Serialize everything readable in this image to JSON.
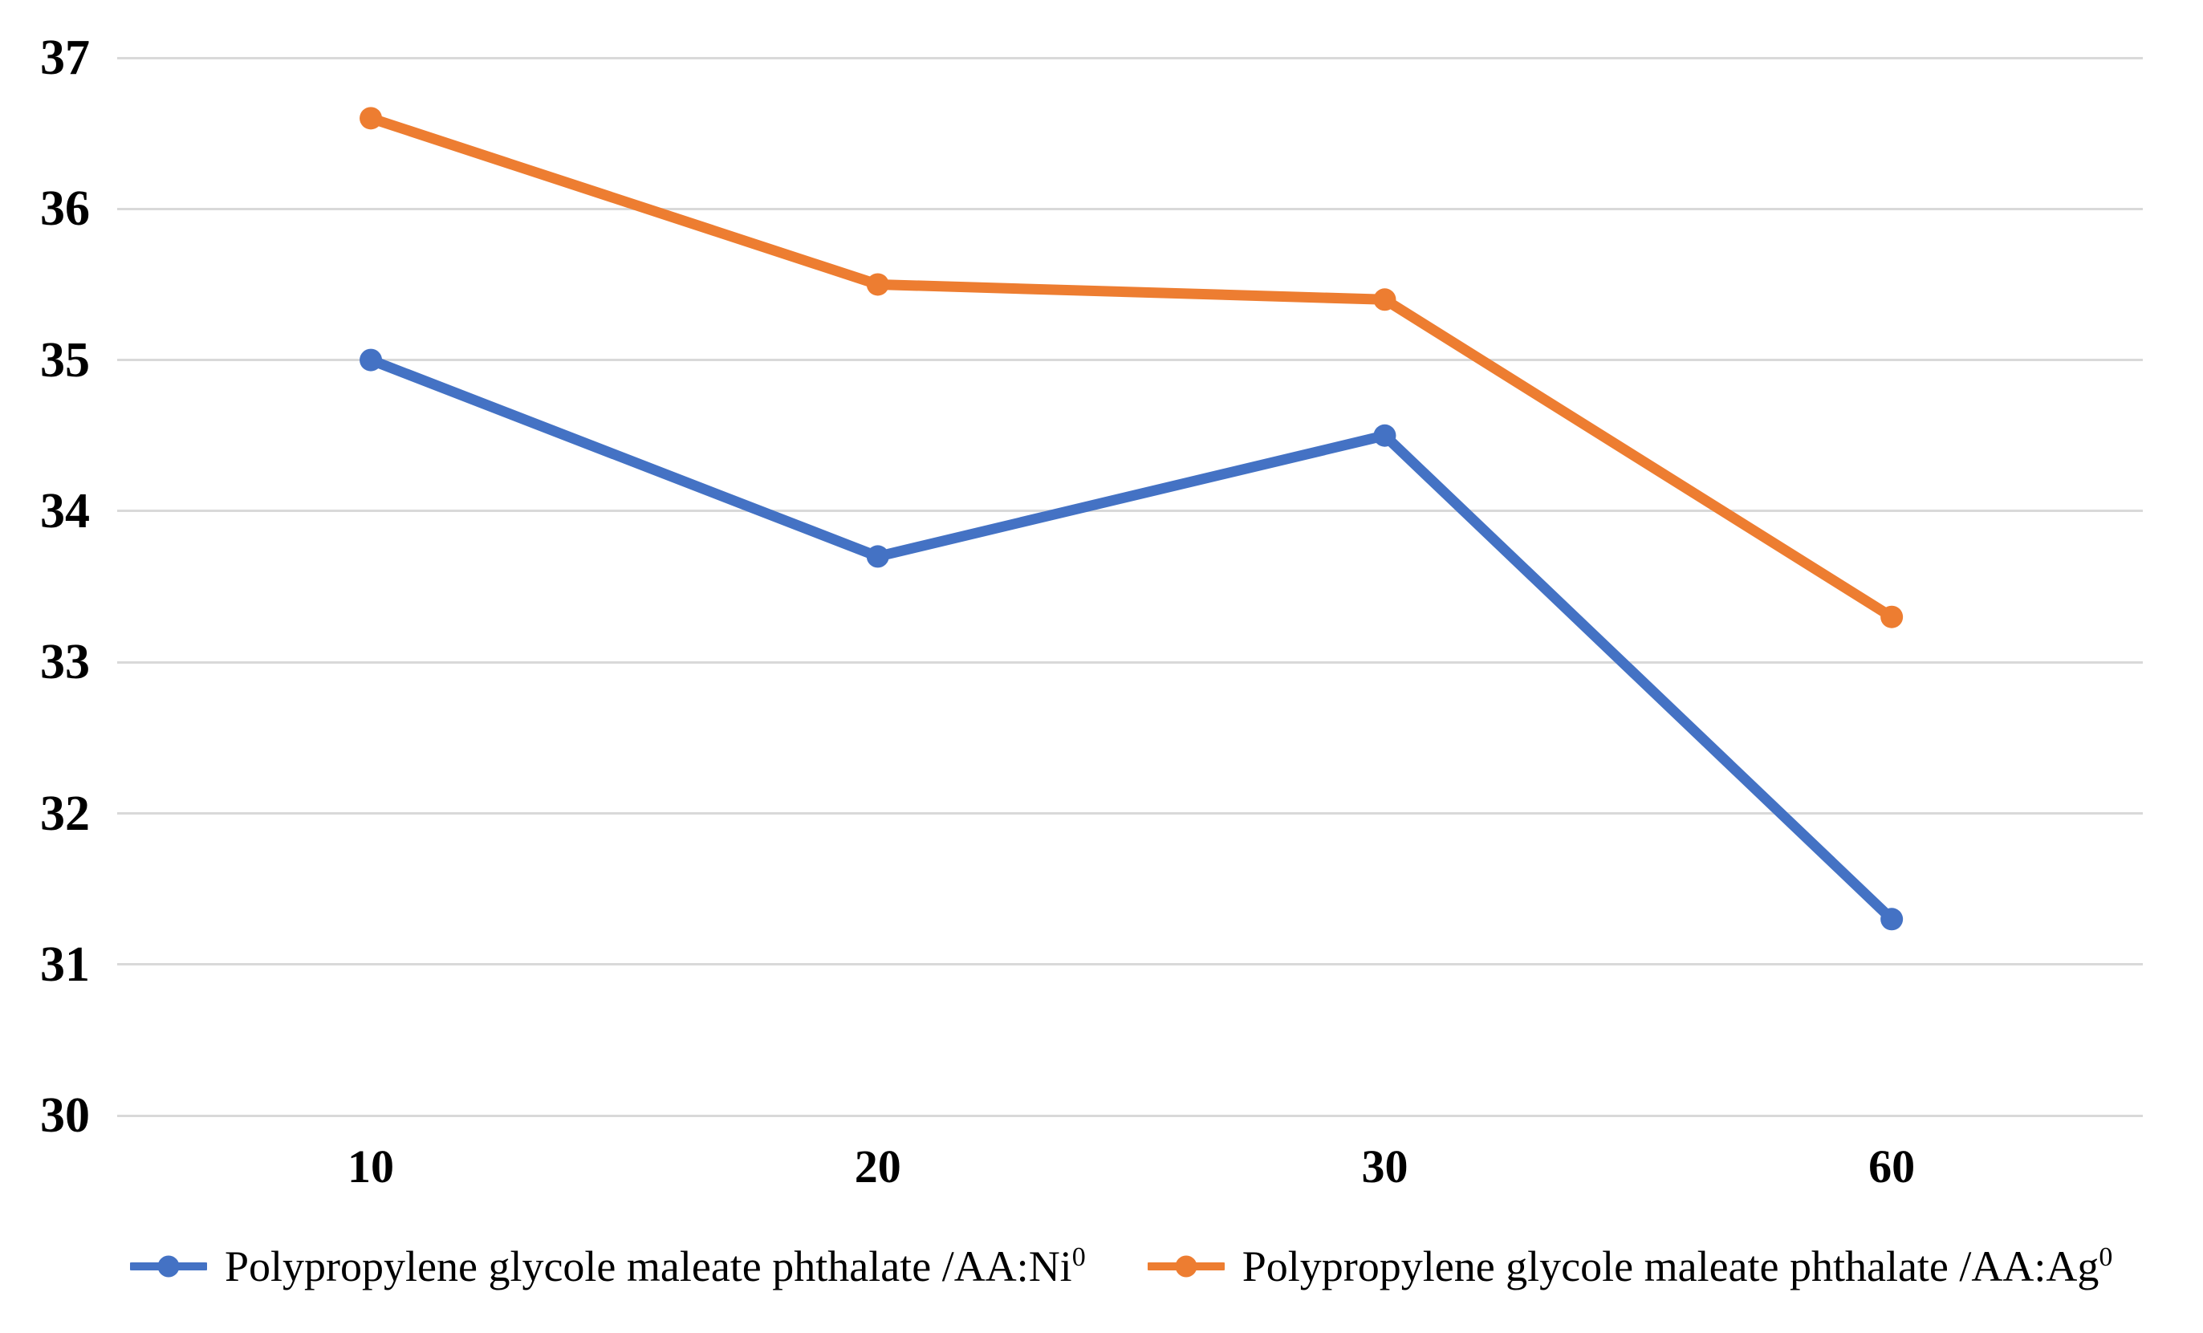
{
  "chart_data": {
    "type": "line",
    "categories": [
      "10",
      "20",
      "30",
      "60"
    ],
    "series": [
      {
        "id": "ni",
        "name": "Polypropylene glycole maleate phthalate /AA:Ni0",
        "legend_label": "Polypropylene glycole maleate phthalate /AA:Ni",
        "legend_superscript": "0",
        "color": "#4472C4",
        "values": [
          35.0,
          33.7,
          34.5,
          31.3
        ]
      },
      {
        "id": "ag",
        "name": "Polypropylene glycole maleate phthalate /AA:Ag0",
        "legend_label": "Polypropylene glycole maleate phthalate /AA:Ag",
        "legend_superscript": "0",
        "color": "#ED7D31",
        "values": [
          36.6,
          35.5,
          35.4,
          33.3
        ]
      }
    ],
    "title": "",
    "xlabel": "",
    "ylabel": "",
    "ylim": [
      30,
      37
    ],
    "yticks": [
      37,
      36,
      35,
      34,
      33,
      32,
      31,
      30
    ],
    "grid": true,
    "gridline_color": "#D9D9D9",
    "marker": "circle",
    "legend_position": "bottom"
  }
}
